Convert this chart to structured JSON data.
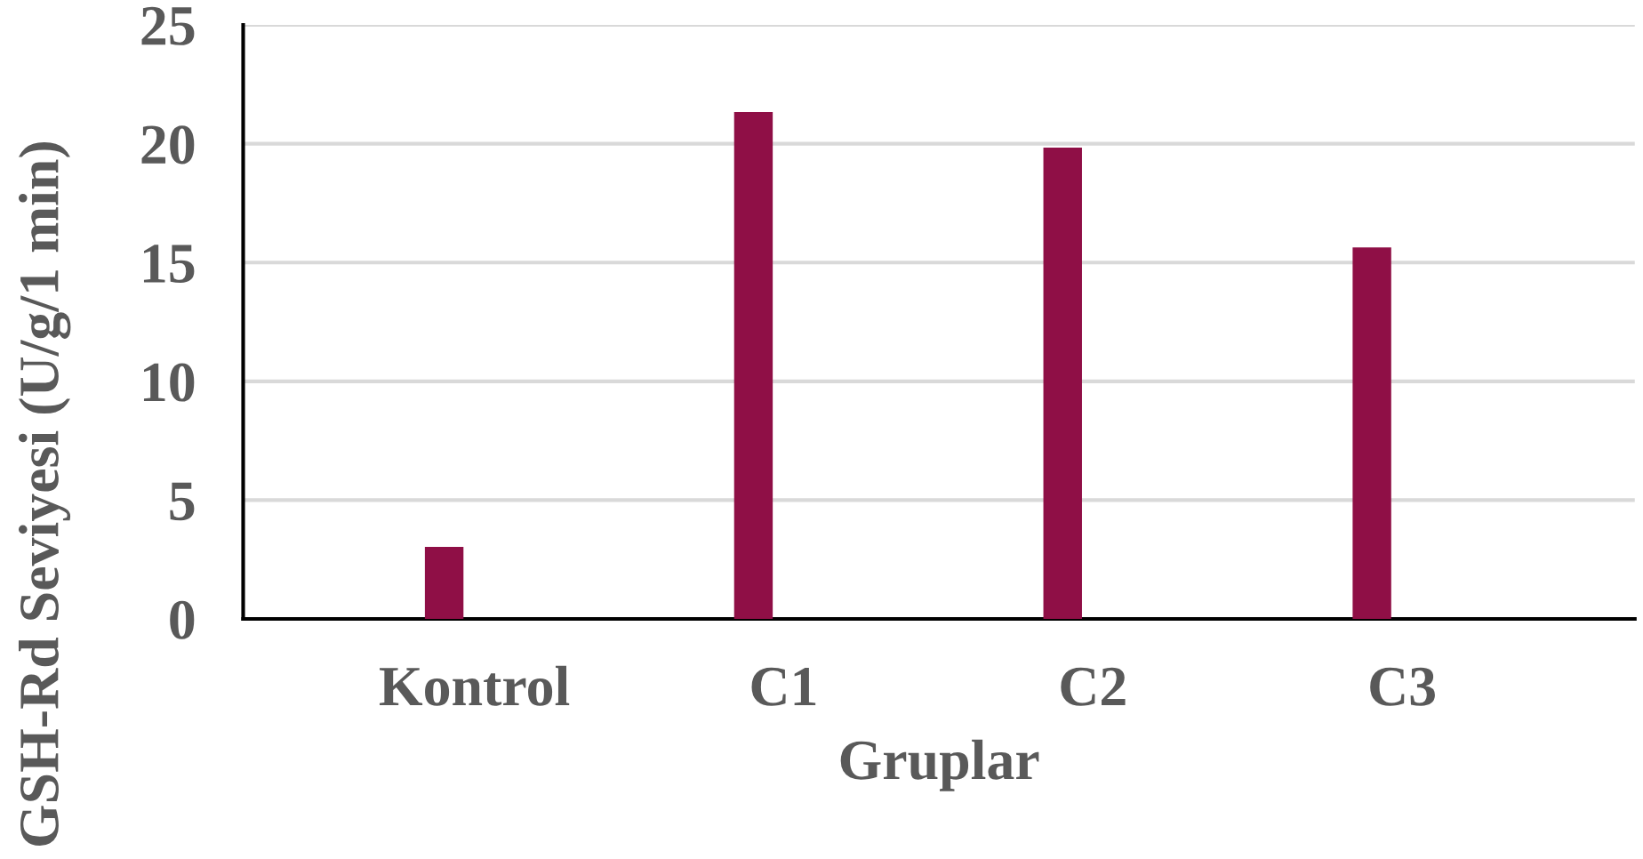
{
  "chart_data": {
    "type": "bar",
    "xlabel": "Gruplar",
    "ylabel": "GSH-Rd Seviyesi (U/g/1 min)",
    "categories": [
      "Kontrol",
      "C1",
      "C2",
      "C3"
    ],
    "values": [
      3.0,
      21.3,
      19.8,
      15.6
    ],
    "color": "#8f0f46",
    "ylim": [
      0,
      25
    ],
    "yticks": [
      0,
      5,
      10,
      15,
      20,
      25
    ],
    "grid": "y"
  }
}
